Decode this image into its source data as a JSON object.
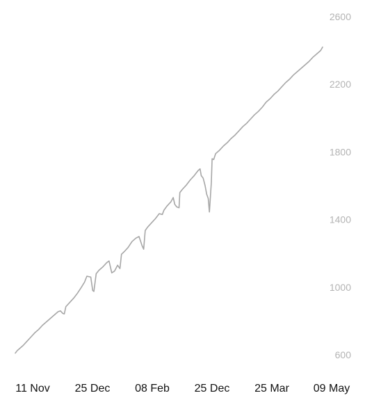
{
  "chart_data": {
    "type": "line",
    "title": "",
    "xlabel": "",
    "ylabel": "",
    "ylim": [
      600,
      2600
    ],
    "grid": false,
    "legend": "none",
    "y_axis_position": "right",
    "y_ticks": [
      600,
      1000,
      1400,
      1800,
      2200,
      2600
    ],
    "x_tick_labels": [
      "11 Nov",
      "25 Dec",
      "08 Feb",
      "25 Dec",
      "25 Mar",
      "09 May"
    ],
    "line_color": "#a6a6a6",
    "series": [
      {
        "points": [
          [
            0.0,
            610
          ],
          [
            0.5,
            625
          ],
          [
            1.0,
            635
          ],
          [
            2.0,
            655
          ],
          [
            3.0,
            680
          ],
          [
            4.0,
            705
          ],
          [
            5.0,
            730
          ],
          [
            6.0,
            750
          ],
          [
            7.0,
            775
          ],
          [
            8.0,
            795
          ],
          [
            9.0,
            815
          ],
          [
            10.0,
            835
          ],
          [
            11.0,
            855
          ],
          [
            11.6,
            860
          ],
          [
            12.2,
            845
          ],
          [
            12.6,
            842
          ],
          [
            13.0,
            885
          ],
          [
            14.0,
            910
          ],
          [
            15.0,
            935
          ],
          [
            16.0,
            965
          ],
          [
            17.0,
            1000
          ],
          [
            17.8,
            1030
          ],
          [
            18.4,
            1065
          ],
          [
            19.4,
            1060
          ],
          [
            19.9,
            980
          ],
          [
            20.2,
            975
          ],
          [
            20.8,
            1080
          ],
          [
            21.5,
            1100
          ],
          [
            22.5,
            1120
          ],
          [
            23.5,
            1145
          ],
          [
            24.1,
            1155
          ],
          [
            24.8,
            1085
          ],
          [
            25.5,
            1095
          ],
          [
            26.3,
            1130
          ],
          [
            26.9,
            1110
          ],
          [
            27.3,
            1195
          ],
          [
            28.0,
            1210
          ],
          [
            29.0,
            1235
          ],
          [
            30.0,
            1270
          ],
          [
            31.0,
            1290
          ],
          [
            31.8,
            1300
          ],
          [
            32.6,
            1245
          ],
          [
            33.0,
            1225
          ],
          [
            33.4,
            1335
          ],
          [
            34.0,
            1355
          ],
          [
            35.0,
            1380
          ],
          [
            36.0,
            1405
          ],
          [
            37.0,
            1435
          ],
          [
            37.8,
            1430
          ],
          [
            38.2,
            1455
          ],
          [
            39.0,
            1480
          ],
          [
            40.0,
            1505
          ],
          [
            40.6,
            1530
          ],
          [
            41.0,
            1490
          ],
          [
            41.5,
            1475
          ],
          [
            42.1,
            1470
          ],
          [
            42.3,
            1560
          ],
          [
            43.0,
            1580
          ],
          [
            44.0,
            1605
          ],
          [
            45.0,
            1635
          ],
          [
            46.0,
            1660
          ],
          [
            47.0,
            1690
          ],
          [
            47.5,
            1700
          ],
          [
            47.8,
            1660
          ],
          [
            48.3,
            1645
          ],
          [
            48.8,
            1600
          ],
          [
            49.2,
            1550
          ],
          [
            49.6,
            1525
          ],
          [
            49.9,
            1445
          ],
          [
            50.4,
            1620
          ],
          [
            50.6,
            1760
          ],
          [
            51.0,
            1755
          ],
          [
            51.5,
            1790
          ],
          [
            52.5,
            1810
          ],
          [
            53.5,
            1835
          ],
          [
            54.5,
            1855
          ],
          [
            55.5,
            1880
          ],
          [
            56.5,
            1900
          ],
          [
            57.5,
            1925
          ],
          [
            58.5,
            1950
          ],
          [
            59.5,
            1970
          ],
          [
            60.5,
            1995
          ],
          [
            61.5,
            2020
          ],
          [
            62.5,
            2040
          ],
          [
            63.5,
            2065
          ],
          [
            64.5,
            2095
          ],
          [
            65.5,
            2115
          ],
          [
            66.5,
            2140
          ],
          [
            67.5,
            2160
          ],
          [
            68.5,
            2185
          ],
          [
            69.5,
            2210
          ],
          [
            70.5,
            2230
          ],
          [
            71.5,
            2255
          ],
          [
            72.5,
            2275
          ],
          [
            73.5,
            2295
          ],
          [
            74.5,
            2315
          ],
          [
            75.5,
            2335
          ],
          [
            76.5,
            2360
          ],
          [
            77.5,
            2380
          ],
          [
            78.5,
            2400
          ],
          [
            79.0,
            2420
          ]
        ]
      }
    ]
  }
}
